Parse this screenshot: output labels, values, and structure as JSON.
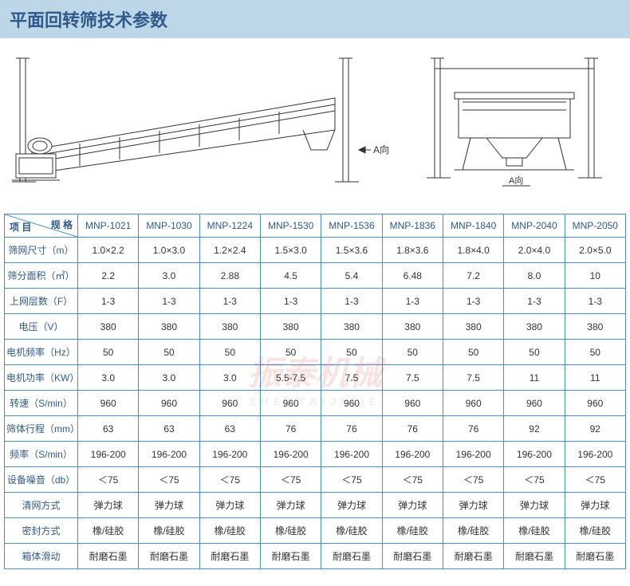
{
  "header": {
    "title": "平面回转筛技术参数"
  },
  "diagram": {
    "view_label_a": "A向",
    "view_label_a2": "A向"
  },
  "watermark": {
    "main": "振泰机械",
    "sub": "ZHENTAIJIXIE"
  },
  "table": {
    "corner": {
      "top": "规 格",
      "bottom": "项 目"
    },
    "models": [
      "MNP-1021",
      "MNP-1030",
      "MNP-1224",
      "MNP-1530",
      "MNP-1536",
      "MNP-1836",
      "MNP-1840",
      "MNP-2040",
      "MNP-2050"
    ],
    "rows": [
      {
        "label": "筛网尺寸（m）",
        "cells": [
          "1.0×2.2",
          "1.0×3.0",
          "1.2×2.4",
          "1.5×3.0",
          "1.5×3.6",
          "1.8×3.6",
          "1.8×4.0",
          "2.0×4.0",
          "2.0×5.0"
        ]
      },
      {
        "label": "筛分面积（㎡）",
        "cells": [
          "2.2",
          "3.0",
          "2.88",
          "4.5",
          "5.4",
          "6.48",
          "7.2",
          "8.0",
          "10"
        ]
      },
      {
        "label": "上网层数（F）",
        "cells": [
          "1-3",
          "1-3",
          "1-3",
          "1-3",
          "1-3",
          "1-3",
          "1-3",
          "1-3",
          "1-3"
        ]
      },
      {
        "label": "电压（V）",
        "cells": [
          "380",
          "380",
          "380",
          "380",
          "380",
          "380",
          "380",
          "380",
          "380"
        ]
      },
      {
        "label": "电机频率（Hz）",
        "cells": [
          "50",
          "50",
          "50",
          "50",
          "50",
          "50",
          "50",
          "50",
          "50"
        ]
      },
      {
        "label": "电机功率（KW）",
        "cells": [
          "3.0",
          "3.0",
          "3.0",
          "5.5-7.5",
          "7.5",
          "7.5",
          "7.5",
          "11",
          "11"
        ]
      },
      {
        "label": "转速（S/min）",
        "cells": [
          "960",
          "960",
          "960",
          "960",
          "960",
          "960",
          "960",
          "960",
          "960"
        ]
      },
      {
        "label": "筛体行程（mm）",
        "cells": [
          "63",
          "63",
          "63",
          "76",
          "76",
          "76",
          "76",
          "92",
          "92"
        ]
      },
      {
        "label": "频率（S/min）",
        "cells": [
          "196-200",
          "196-200",
          "196-200",
          "196-200",
          "196-200",
          "196-200",
          "196-200",
          "196-200",
          "196-200"
        ]
      },
      {
        "label": "设备噪音（db）",
        "cells": [
          "＜75",
          "＜75",
          "＜75",
          "＜75",
          "＜75",
          "＜75",
          "＜75",
          "＜75",
          "＜75"
        ]
      },
      {
        "label": "清网方式",
        "cells": [
          "弹力球",
          "弹力球",
          "弹力球",
          "弹力球",
          "弹力球",
          "弹力球",
          "弹力球",
          "弹力球",
          "弹力球"
        ]
      },
      {
        "label": "密封方式",
        "cells": [
          "橡/硅胶",
          "橡/硅胶",
          "橡/硅胶",
          "橡/硅胶",
          "橡/硅胶",
          "橡/硅胶",
          "橡/硅胶",
          "橡/硅胶",
          "橡/硅胶"
        ]
      },
      {
        "label": "箱体滑动",
        "cells": [
          "耐磨石墨",
          "耐磨石墨",
          "耐磨石墨",
          "耐磨石墨",
          "耐磨石墨",
          "耐磨石墨",
          "耐磨石墨",
          "耐磨石墨",
          "耐磨石墨"
        ]
      }
    ],
    "border_color": "#4a8fc8",
    "header_text_color": "#305a8c"
  }
}
